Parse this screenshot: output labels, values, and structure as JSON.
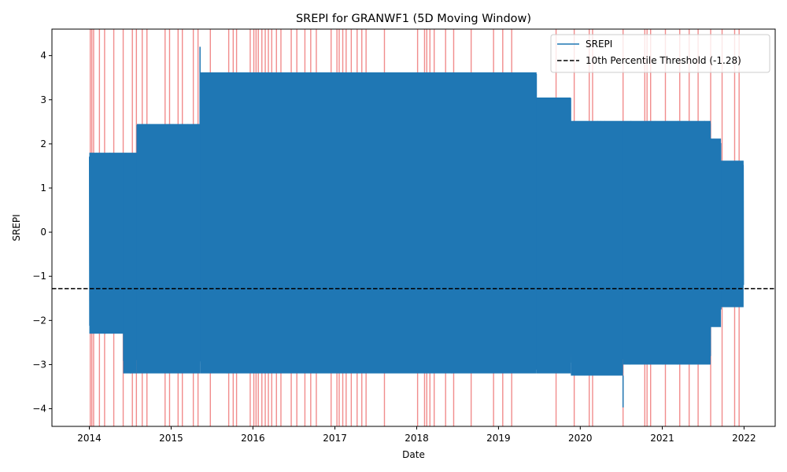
{
  "chart_data": {
    "type": "line",
    "title": "SREPI for GRANWF1 (5D Moving Window)",
    "xlabel": "Date",
    "ylabel": "SREPI",
    "xlim": [
      "2013-07-18",
      "2022-05-20"
    ],
    "ylim": [
      -4.4,
      4.6
    ],
    "x_ticks": [
      "2014",
      "2015",
      "2016",
      "2017",
      "2018",
      "2019",
      "2020",
      "2021",
      "2022"
    ],
    "y_ticks": [
      -4,
      -3,
      -2,
      -1,
      0,
      1,
      2,
      3,
      4
    ],
    "legend_position": "top-right",
    "series": [
      {
        "name": "SREPI",
        "color": "#1f77b4",
        "line_width": 1.5,
        "description": "Dense oscillating series; per-period value envelope below",
        "envelope": [
          {
            "x_start": "2014-01-01",
            "x_end": "2014-06-01",
            "max": 1.8,
            "min": -2.3
          },
          {
            "x_start": "2014-06-01",
            "x_end": "2014-08-01",
            "max": 1.8,
            "min": -3.2
          },
          {
            "x_start": "2014-08-01",
            "x_end": "2015-05-10",
            "max": 2.45,
            "min": -3.2
          },
          {
            "x_start": "2015-05-10",
            "x_end": "2019-06-20",
            "max": 3.62,
            "min": -3.2
          },
          {
            "x_start": "2019-06-20",
            "x_end": "2019-11-20",
            "max": 3.05,
            "min": -3.2
          },
          {
            "x_start": "2019-11-20",
            "x_end": "2020-07-10",
            "max": 2.52,
            "min": -3.25
          },
          {
            "x_start": "2020-07-10",
            "x_end": "2021-08-05",
            "max": 2.52,
            "min": -3.0
          },
          {
            "x_start": "2021-08-05",
            "x_end": "2021-09-20",
            "max": 2.12,
            "min": -2.15
          },
          {
            "x_start": "2021-09-20",
            "x_end": "2021-12-30",
            "max": 1.62,
            "min": -1.7
          }
        ],
        "notable_points": [
          {
            "x": "2015-05-10",
            "y": 4.2
          },
          {
            "x": "2020-07-10",
            "y": -3.97
          }
        ]
      },
      {
        "name": "10th Percentile Threshold (-1.28)",
        "color": "#000000",
        "style": "dashed",
        "y": -1.28
      }
    ],
    "drought_event_color": "#f08080",
    "drought_event_dates": [
      "2014-01-05",
      "2014-01-12",
      "2014-01-20",
      "2014-02-15",
      "2014-03-10",
      "2014-04-20",
      "2014-06-01",
      "2014-07-12",
      "2014-07-30",
      "2014-08-25",
      "2014-09-15",
      "2014-12-05",
      "2014-12-25",
      "2015-02-01",
      "2015-02-20",
      "2015-04-10",
      "2015-05-01",
      "2015-06-25",
      "2015-09-15",
      "2015-10-05",
      "2015-10-20",
      "2015-12-20",
      "2016-01-05",
      "2016-01-15",
      "2016-01-25",
      "2016-02-10",
      "2016-02-25",
      "2016-03-10",
      "2016-03-25",
      "2016-04-15",
      "2016-05-05",
      "2016-06-20",
      "2016-07-15",
      "2016-08-20",
      "2016-09-15",
      "2016-10-10",
      "2016-12-15",
      "2017-01-10",
      "2017-01-20",
      "2017-02-05",
      "2017-02-20",
      "2017-03-15",
      "2017-04-10",
      "2017-05-01",
      "2017-05-20",
      "2017-08-10",
      "2018-01-05",
      "2018-02-05",
      "2018-02-15",
      "2018-03-01",
      "2018-03-20",
      "2018-05-10",
      "2018-06-15",
      "2018-09-01",
      "2018-12-10",
      "2019-01-20",
      "2019-03-01",
      "2019-09-15",
      "2019-12-05",
      "2020-02-10",
      "2020-02-25",
      "2020-07-10",
      "2020-10-15",
      "2020-10-25",
      "2020-11-10",
      "2021-01-15",
      "2021-03-20",
      "2021-05-01",
      "2021-06-10",
      "2021-08-05",
      "2021-09-25",
      "2021-11-20",
      "2021-12-10"
    ],
    "grid": false
  }
}
